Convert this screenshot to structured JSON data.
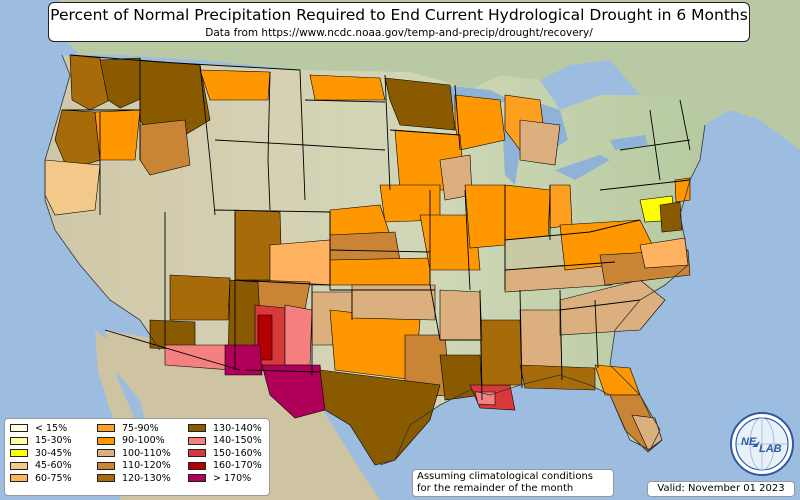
{
  "header": {
    "title": "Percent of Normal Precipitation Required to End Current Hydrological Drought in 6 Months",
    "subtitle": "Data from https://www.ncdc.noaa.gov/temp-and-precip/drought/recovery/"
  },
  "legend": {
    "items": [
      {
        "label": "< 15%",
        "color": "#fffde0"
      },
      {
        "label": "15-30%",
        "color": "#ffffa0"
      },
      {
        "label": "30-45%",
        "color": "#ffff00"
      },
      {
        "label": "45-60%",
        "color": "#f3c98a"
      },
      {
        "label": "60-75%",
        "color": "#ffb260"
      },
      {
        "label": "75-90%",
        "color": "#ff9f20"
      },
      {
        "label": "90-100%",
        "color": "#ff9700"
      },
      {
        "label": "100-110%",
        "color": "#dcb07e"
      },
      {
        "label": "110-120%",
        "color": "#c98535"
      },
      {
        "label": "120-130%",
        "color": "#a86b0a"
      },
      {
        "label": "130-140%",
        "color": "#8a5a00"
      },
      {
        "label": "140-150%",
        "color": "#f58080"
      },
      {
        "label": "150-160%",
        "color": "#d83a3a"
      },
      {
        "label": "160-170%",
        "color": "#b40000"
      },
      {
        "label": "> 170%",
        "color": "#b0005a"
      }
    ]
  },
  "footer": {
    "note_line1": "Assuming climatological conditions",
    "note_line2": "for the remainder of the month",
    "valid": "Valid: November 01 2023"
  },
  "logo": {
    "text_ne": "NE",
    "text_lab": "LAB"
  },
  "colors": {
    "ocean": "#9dbde0",
    "land_us": "#d9dcc5",
    "land_canada": "#b9c9a3",
    "land_mexico": "#cfc4a2",
    "great_lakes": "#8fb3d6",
    "state_border": "#000000"
  }
}
